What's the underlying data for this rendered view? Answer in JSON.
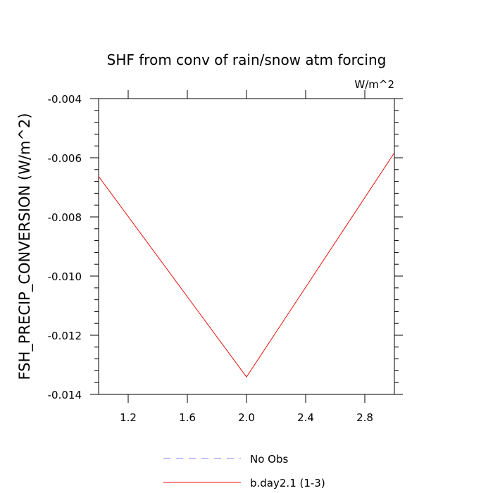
{
  "chart_data": {
    "type": "line",
    "title": "SHF from conv of rain/snow atm forcing",
    "units": "W/m^2",
    "xlabel": "",
    "ylabel": "FSH_PRECIP_CONVERSION  (W/m^2)",
    "xlim": [
      1.0,
      3.0
    ],
    "ylim": [
      -0.014,
      -0.004
    ],
    "x_ticks": [
      1.2,
      1.6,
      2.0,
      2.4,
      2.8
    ],
    "x_tick_labels": [
      "1.2",
      "1.6",
      "2.0",
      "2.4",
      "2.8"
    ],
    "y_ticks": [
      -0.004,
      -0.006,
      -0.008,
      -0.01,
      -0.012,
      -0.014
    ],
    "y_tick_labels": [
      "-0.004",
      "-0.006",
      "-0.008",
      "-0.010",
      "-0.012",
      "-0.014"
    ],
    "grid": false,
    "legend_position": "bottom-center",
    "series": [
      {
        "name": "No Obs",
        "color": "#8080ff",
        "dashed": true,
        "x": [],
        "y": []
      },
      {
        "name": "b.day2.1 (1-3)",
        "color": "#e81010",
        "dashed": false,
        "x": [
          1,
          2,
          3
        ],
        "y": [
          -0.00663,
          -0.01341,
          -0.00583
        ]
      }
    ]
  }
}
